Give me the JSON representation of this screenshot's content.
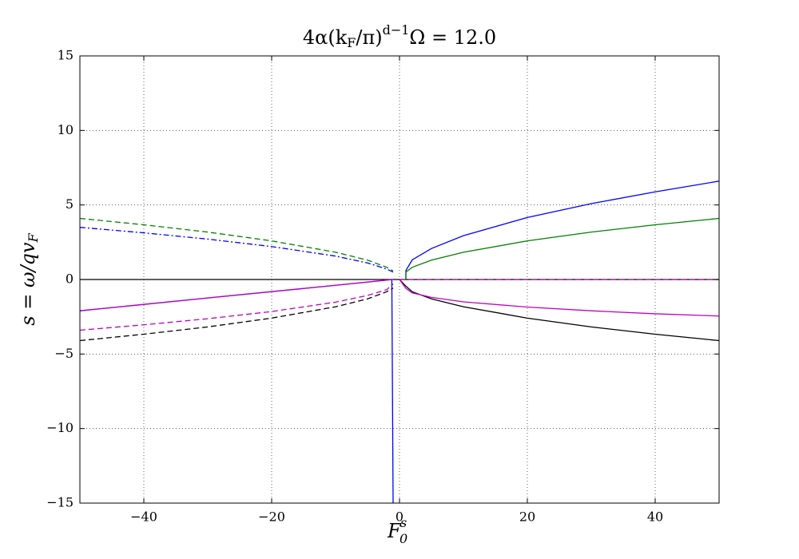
{
  "chart_data": {
    "type": "line",
    "title": [
      "4α(k",
      "F",
      "/π)",
      "d−1",
      "Ω = 12.0"
    ],
    "y_label": [
      "s = ω/qv",
      "F"
    ],
    "x_label": [
      "F",
      "0",
      "s"
    ],
    "xlim": [
      -50,
      50
    ],
    "ylim": [
      -15,
      15
    ],
    "xticks": [
      {
        "value": -40,
        "label": "−40"
      },
      {
        "value": -20,
        "label": "−20"
      },
      0,
      20,
      40
    ],
    "yticks": [
      {
        "value": -15,
        "label": "−15"
      },
      {
        "value": -10,
        "label": "−10"
      },
      {
        "value": -5,
        "label": "−5"
      },
      0,
      5,
      10,
      15
    ],
    "grid": true,
    "series": [
      {
        "color": "#000000",
        "linestyle": "solid",
        "x": [
          -50,
          50
        ],
        "values": [
          0,
          0
        ]
      },
      {
        "color": "#bf00bf",
        "linestyle": "dashed",
        "x": [
          0,
          50
        ],
        "values": [
          0,
          0
        ]
      },
      {
        "color": "#008000",
        "linestyle": "dashed",
        "x": [
          -50,
          -40,
          -30,
          -20,
          -10,
          -5,
          -2,
          -1
        ],
        "values": [
          4.1,
          3.67,
          3.18,
          2.59,
          1.83,
          1.3,
          0.82,
          0.58
        ]
      },
      {
        "color": "#0000ff",
        "linestyle": "dashdot",
        "x": [
          -50,
          -40,
          -30,
          -20,
          -10,
          -5,
          -2,
          -1
        ],
        "values": [
          3.5,
          3.13,
          2.71,
          2.21,
          1.57,
          1.11,
          0.7,
          0.5
        ]
      },
      {
        "color": "#000000",
        "linestyle": "dashed",
        "x": [
          -50,
          -40,
          -30,
          -20,
          -10,
          -5,
          -2,
          -1
        ],
        "values": [
          -4.1,
          -3.67,
          -3.18,
          -2.59,
          -1.83,
          -1.3,
          -0.82,
          -0.58
        ]
      },
      {
        "color": "#bf00bf",
        "linestyle": "dashed",
        "x": [
          -50,
          -40,
          -30,
          -20,
          -10,
          -5,
          -2,
          -1
        ],
        "values": [
          -3.4,
          -3.04,
          -2.63,
          -2.15,
          -1.52,
          -1.07,
          -0.68,
          -0.3
        ]
      },
      {
        "color": "#0000ff",
        "linestyle": "solid",
        "x": [
          -50,
          -30,
          -10,
          -2,
          -1.2,
          -1
        ],
        "values": [
          -2.1,
          -1.24,
          -0.39,
          -0.04,
          0,
          -15
        ]
      },
      {
        "color": "#bf00bf",
        "linestyle": "solid",
        "x": [
          -50,
          -40,
          -30,
          -20,
          -10,
          -5,
          -2,
          -1
        ],
        "values": [
          -2.1,
          -1.67,
          -1.24,
          -0.81,
          -0.39,
          -0.17,
          -0.04,
          0
        ]
      },
      {
        "color": "#0000ff",
        "linestyle": "solid",
        "x": [
          1,
          1,
          2,
          5,
          10,
          20,
          30,
          40,
          50
        ],
        "values": [
          0,
          0.6,
          1.32,
          2.08,
          2.94,
          4.16,
          5.09,
          5.88,
          6.6
        ]
      },
      {
        "color": "#008000",
        "linestyle": "solid",
        "x": [
          1,
          1,
          2,
          5,
          10,
          20,
          30,
          40,
          50
        ],
        "values": [
          0,
          0.5,
          0.82,
          1.3,
          1.83,
          2.59,
          3.18,
          3.67,
          4.1
        ]
      },
      {
        "color": "#000000",
        "linestyle": "solid",
        "x": [
          0,
          1,
          2,
          5,
          10,
          20,
          30,
          40,
          50
        ],
        "values": [
          0,
          -0.45,
          -0.82,
          -1.3,
          -1.83,
          -2.59,
          -3.18,
          -3.67,
          -4.1
        ]
      },
      {
        "color": "#bf00bf",
        "linestyle": "solid",
        "x": [
          0,
          1,
          2,
          5,
          10,
          20,
          30,
          40,
          50
        ],
        "values": [
          0,
          -0.6,
          -0.9,
          -1.2,
          -1.5,
          -1.85,
          -2.1,
          -2.3,
          -2.45
        ]
      }
    ]
  }
}
